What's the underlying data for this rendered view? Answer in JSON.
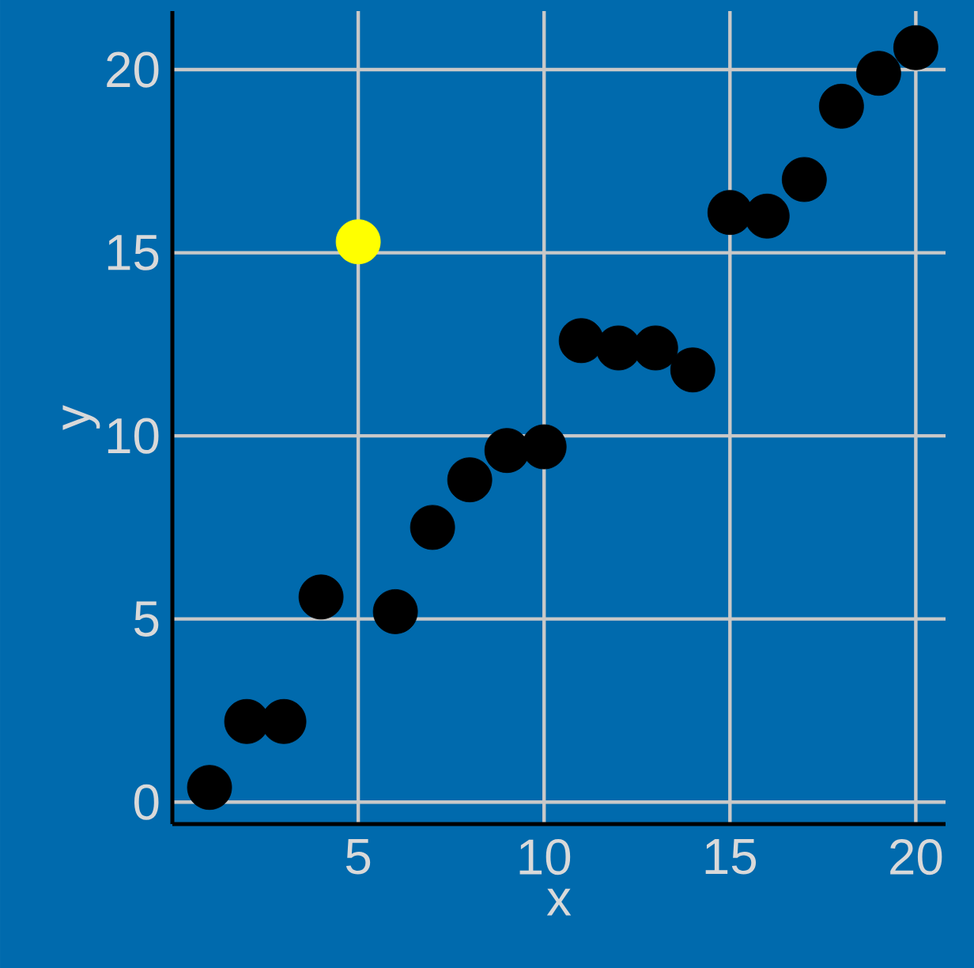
{
  "chart_data": {
    "type": "scatter",
    "xlabel": "x",
    "ylabel": "y",
    "x": [
      1,
      2,
      3,
      4,
      5,
      6,
      7,
      8,
      9,
      10,
      11,
      12,
      13,
      14,
      15,
      16,
      17,
      18,
      19,
      20
    ],
    "values": [
      0.4,
      2.2,
      2.2,
      5.6,
      15.3,
      5.2,
      7.5,
      8.8,
      9.6,
      9.7,
      12.6,
      12.4,
      12.4,
      11.8,
      16.1,
      16.0,
      17.0,
      19.0,
      19.9,
      20.6
    ],
    "colors": [
      "#000000",
      "#000000",
      "#000000",
      "#000000",
      "#ffff00",
      "#000000",
      "#000000",
      "#000000",
      "#000000",
      "#000000",
      "#000000",
      "#000000",
      "#000000",
      "#000000",
      "#000000",
      "#000000",
      "#000000",
      "#000000",
      "#000000",
      "#000000"
    ],
    "xlim": [
      0,
      20.8
    ],
    "ylim": [
      -0.6,
      21.6
    ],
    "xticks": [
      5,
      10,
      15,
      20
    ],
    "yticks": [
      0,
      5,
      10,
      15,
      20
    ],
    "grid": true,
    "marker": "circle"
  }
}
